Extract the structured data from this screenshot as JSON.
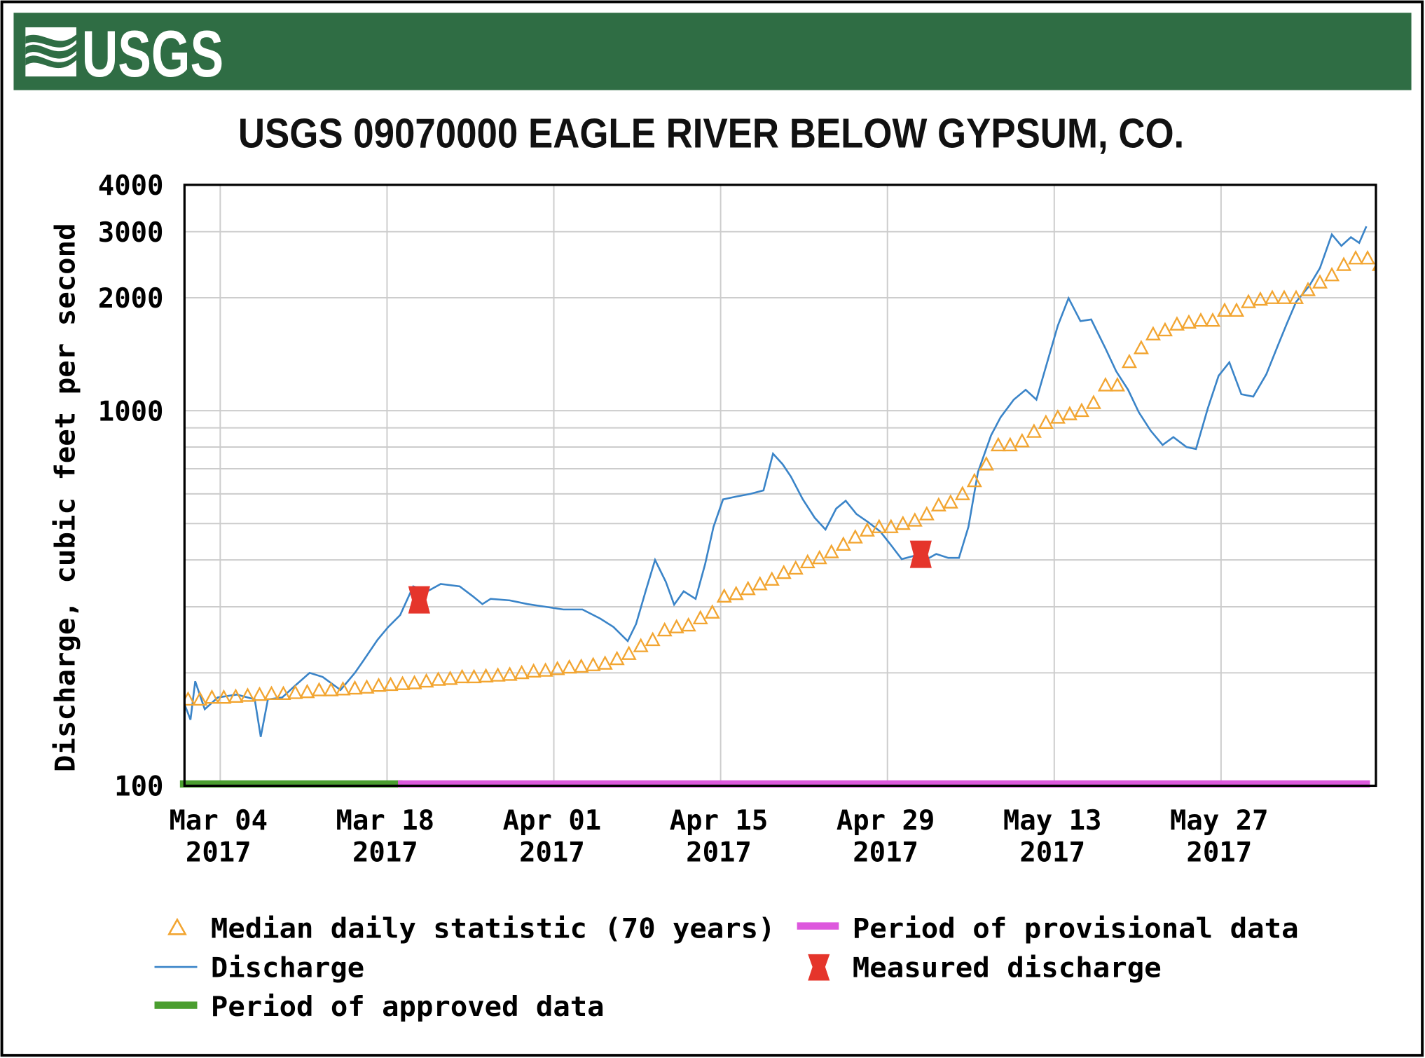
{
  "logo": {
    "text": "USGS"
  },
  "colors": {
    "banner": "#2f6d44",
    "discharge": "#3a84c8",
    "median": "#f2a531",
    "approved": "#4a9e2f",
    "provisional": "#dd58dd",
    "measured": "#e5352b",
    "grid": "#cccccc"
  },
  "chart_data": {
    "type": "line",
    "title": "USGS 09070000 EAGLE RIVER BELOW GYPSUM, CO.",
    "ylabel": "Discharge, cubic feet per second",
    "xlabel": "",
    "yscale": "log",
    "ylim": [
      100,
      4000
    ],
    "x_start_date": "2017-03-01",
    "xlim_days": [
      0,
      100
    ],
    "grid": true,
    "legend_placement": "bottom",
    "yticks": [
      {
        "value": 100,
        "label": "100"
      },
      {
        "value": 1000,
        "label": "1000"
      },
      {
        "value": 2000,
        "label": "2000"
      },
      {
        "value": 3000,
        "label": "3000"
      },
      {
        "value": 4000,
        "label": "4000"
      }
    ],
    "minor_ygrid": [
      200,
      300,
      400,
      500,
      600,
      700,
      800,
      900
    ],
    "xticks": [
      {
        "day": 3,
        "label1": "Mar 04",
        "label2": "2017"
      },
      {
        "day": 17,
        "label1": "Mar 18",
        "label2": "2017"
      },
      {
        "day": 31,
        "label1": "Apr 01",
        "label2": "2017"
      },
      {
        "day": 45,
        "label1": "Apr 15",
        "label2": "2017"
      },
      {
        "day": 59,
        "label1": "Apr 29",
        "label2": "2017"
      },
      {
        "day": 73,
        "label1": "May 13",
        "label2": "2017"
      },
      {
        "day": 87,
        "label1": "May 27",
        "label2": "2017"
      }
    ],
    "series": [
      {
        "name": "Discharge",
        "kind": "line",
        "points_day_value": [
          [
            0,
            165
          ],
          [
            0.5,
            150
          ],
          [
            0.9,
            190
          ],
          [
            1.7,
            160
          ],
          [
            2.8,
            172
          ],
          [
            4.4,
            175
          ],
          [
            5.9,
            170
          ],
          [
            6.4,
            135
          ],
          [
            7.0,
            170
          ],
          [
            8.2,
            172
          ],
          [
            9.3,
            185
          ],
          [
            10.5,
            200
          ],
          [
            11.6,
            195
          ],
          [
            13.1,
            180
          ],
          [
            14.3,
            200
          ],
          [
            15.0,
            215
          ],
          [
            16.2,
            245
          ],
          [
            17.1,
            265
          ],
          [
            18.1,
            285
          ],
          [
            19.2,
            340
          ],
          [
            20.4,
            330
          ],
          [
            21.5,
            345
          ],
          [
            23.1,
            340
          ],
          [
            24.2,
            320
          ],
          [
            25.0,
            305
          ],
          [
            25.7,
            315
          ],
          [
            27.3,
            312
          ],
          [
            28.8,
            305
          ],
          [
            30.3,
            300
          ],
          [
            31.8,
            295
          ],
          [
            33.4,
            295
          ],
          [
            34.9,
            279
          ],
          [
            36.0,
            265
          ],
          [
            37.2,
            243
          ],
          [
            37.9,
            270
          ],
          [
            38.7,
            330
          ],
          [
            39.5,
            400
          ],
          [
            40.4,
            350
          ],
          [
            41.1,
            304
          ],
          [
            41.9,
            330
          ],
          [
            42.9,
            315
          ],
          [
            43.7,
            390
          ],
          [
            44.4,
            490
          ],
          [
            45.2,
            580
          ],
          [
            46.3,
            590
          ],
          [
            47.5,
            600
          ],
          [
            48.6,
            613
          ],
          [
            49.4,
            768
          ],
          [
            50.2,
            720
          ],
          [
            50.9,
            667
          ],
          [
            51.9,
            580
          ],
          [
            52.9,
            518
          ],
          [
            53.8,
            482
          ],
          [
            54.7,
            548
          ],
          [
            55.5,
            575
          ],
          [
            56.4,
            530
          ],
          [
            57.4,
            504
          ],
          [
            58.4,
            476
          ],
          [
            59.3,
            438
          ],
          [
            60.2,
            402
          ],
          [
            61.2,
            410
          ],
          [
            62.2,
            400
          ],
          [
            63.1,
            415
          ],
          [
            64.1,
            405
          ],
          [
            65.0,
            405
          ],
          [
            65.8,
            490
          ],
          [
            66.6,
            686
          ],
          [
            67.7,
            859
          ],
          [
            68.5,
            960
          ],
          [
            69.6,
            1070
          ],
          [
            70.6,
            1137
          ],
          [
            71.5,
            1070
          ],
          [
            72.3,
            1310
          ],
          [
            73.3,
            1686
          ],
          [
            74.2,
            1995
          ],
          [
            75.2,
            1733
          ],
          [
            76.1,
            1750
          ],
          [
            77.3,
            1465
          ],
          [
            78.2,
            1273
          ],
          [
            79.2,
            1137
          ],
          [
            80.1,
            990
          ],
          [
            81.1,
            884
          ],
          [
            82.1,
            810
          ],
          [
            83.0,
            850
          ],
          [
            84.1,
            800
          ],
          [
            84.9,
            790
          ],
          [
            85.9,
            1016
          ],
          [
            86.8,
            1239
          ],
          [
            87.7,
            1346
          ],
          [
            88.7,
            1106
          ],
          [
            89.7,
            1090
          ],
          [
            90.8,
            1250
          ],
          [
            91.8,
            1500
          ],
          [
            92.5,
            1700
          ],
          [
            93.3,
            1950
          ],
          [
            94.4,
            2150
          ],
          [
            95.3,
            2400
          ],
          [
            96.3,
            2950
          ],
          [
            97.1,
            2750
          ],
          [
            97.9,
            2900
          ],
          [
            98.6,
            2800
          ],
          [
            99.2,
            3100
          ]
        ]
      },
      {
        "name": "Median daily statistic (70 years)",
        "kind": "triangle-markers",
        "daily_values_from_day0": [
          170,
          170,
          172,
          172,
          173,
          174,
          175,
          176,
          176,
          177,
          178,
          180,
          180,
          181,
          182,
          183,
          185,
          186,
          187,
          188,
          190,
          192,
          193,
          195,
          195,
          196,
          197,
          198,
          200,
          202,
          203,
          205,
          207,
          208,
          210,
          212,
          218,
          225,
          236,
          245,
          260,
          265,
          268,
          280,
          290,
          320,
          325,
          335,
          345,
          355,
          370,
          380,
          395,
          405,
          420,
          440,
          460,
          480,
          490,
          490,
          500,
          510,
          530,
          560,
          570,
          600,
          650,
          720,
          810,
          810,
          830,
          880,
          930,
          960,
          980,
          1000,
          1050,
          1170,
          1170,
          1350,
          1470,
          1600,
          1640,
          1700,
          1720,
          1740,
          1740,
          1850,
          1850,
          1950,
          1980,
          2000,
          2000,
          2000,
          2100,
          2200,
          2300,
          2450,
          2550,
          2550,
          2450
        ]
      },
      {
        "name": "Measured discharge",
        "kind": "markers",
        "points_day_value": [
          [
            19.7,
            313
          ],
          [
            61.8,
            414
          ]
        ]
      }
    ],
    "periods": [
      {
        "name": "Period of approved data",
        "start_day": 0,
        "end_day": 18.3
      },
      {
        "name": "Period of provisional data",
        "start_day": 18.3,
        "end_day": 99.5
      }
    ],
    "legend": [
      {
        "key": "median",
        "label": "Median daily statistic (70 years)"
      },
      {
        "key": "discharge",
        "label": "Discharge"
      },
      {
        "key": "approved",
        "label": "Period of approved data"
      },
      {
        "key": "provisional",
        "label": "Period of provisional data"
      },
      {
        "key": "measured",
        "label": "Measured discharge"
      }
    ]
  }
}
